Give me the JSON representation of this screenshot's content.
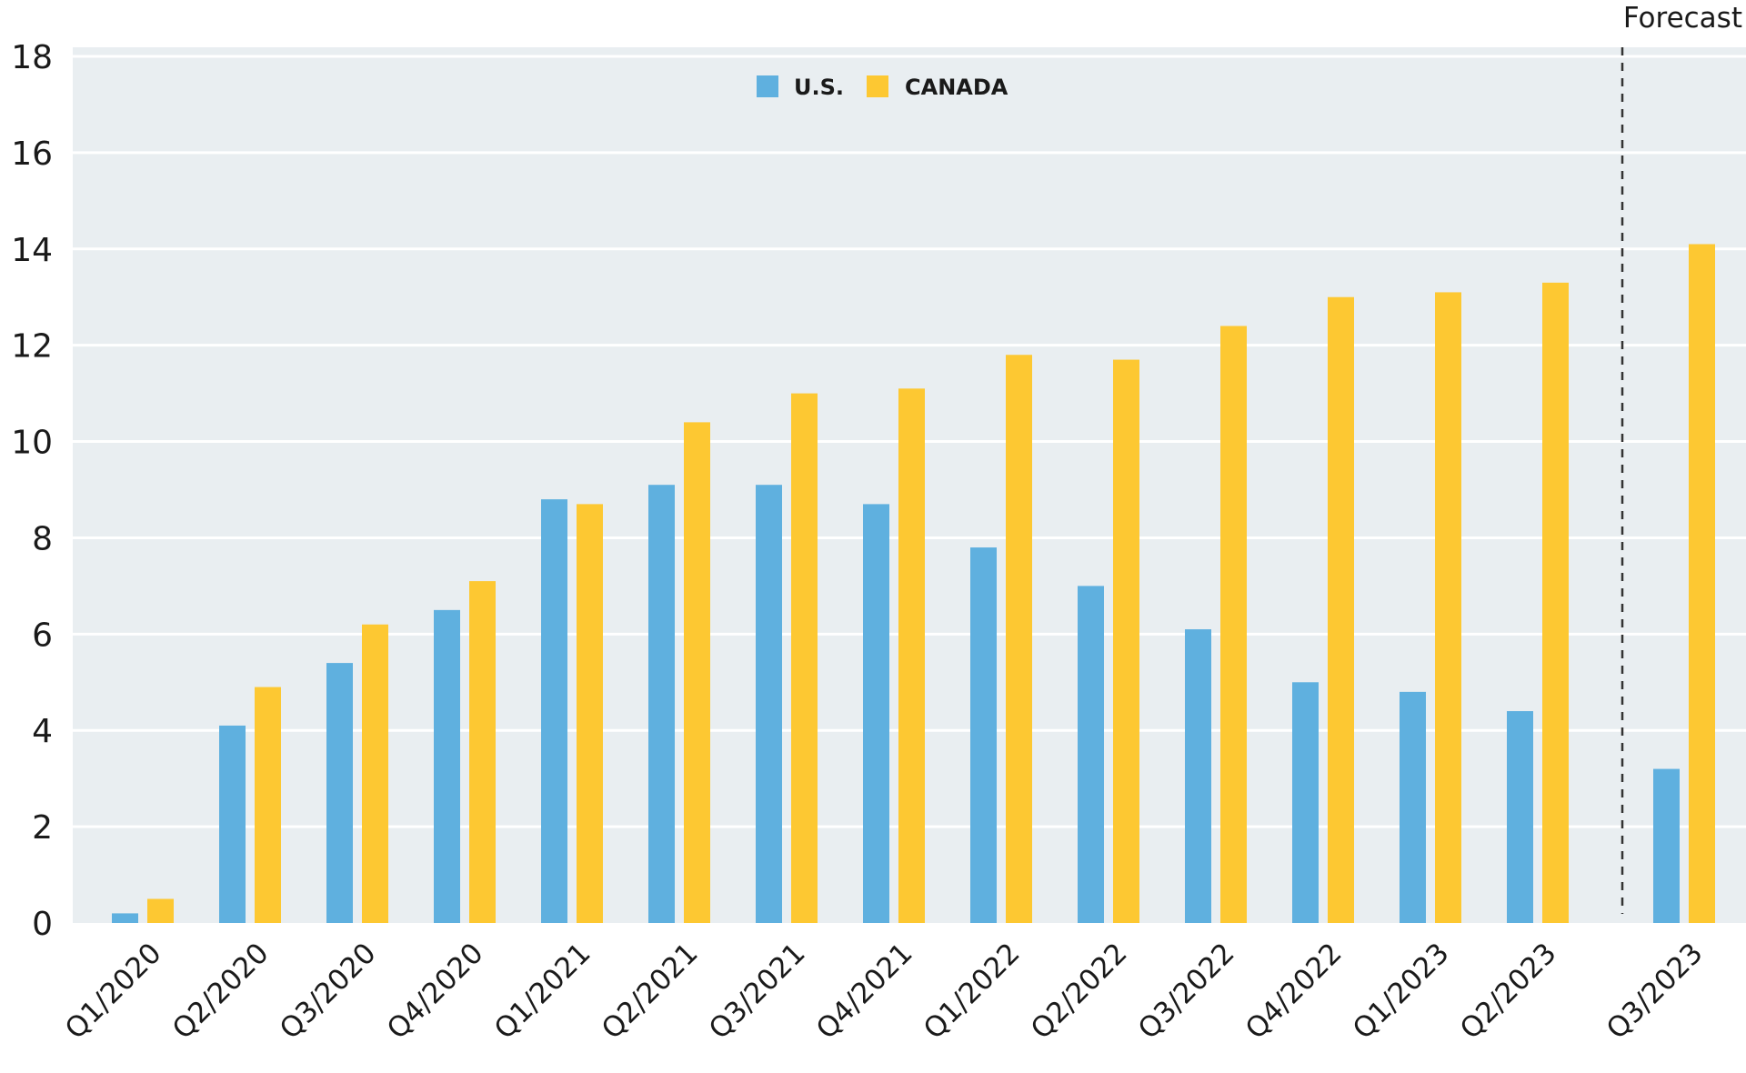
{
  "chart_data": {
    "type": "bar",
    "categories": [
      "Q1/2020",
      "Q2/2020",
      "Q3/2020",
      "Q4/2020",
      "Q1/2021",
      "Q2/2021",
      "Q3/2021",
      "Q4/2021",
      "Q1/2022",
      "Q2/2022",
      "Q3/2022",
      "Q4/2022",
      "Q1/2023",
      "Q2/2023",
      "Q3/2023"
    ],
    "series": [
      {
        "name": "U.S.",
        "color": "#5fb0df",
        "values": [
          0.2,
          4.1,
          5.4,
          6.5,
          8.8,
          9.1,
          9.1,
          8.7,
          7.8,
          7.0,
          6.1,
          5.0,
          4.8,
          4.4,
          3.2
        ]
      },
      {
        "name": "CANADA",
        "color": "#fdc832",
        "values": [
          0.5,
          4.9,
          6.2,
          7.1,
          8.7,
          10.4,
          11.0,
          11.1,
          11.8,
          11.7,
          12.4,
          13.0,
          13.1,
          13.3,
          14.1
        ]
      }
    ],
    "ylim": [
      0,
      18
    ],
    "yticks": [
      0,
      2,
      4,
      6,
      8,
      10,
      12,
      14,
      16,
      18
    ],
    "grid": true,
    "legend": "top-center",
    "forecast_label": "Forecast",
    "forecast_start_category": "Q3/2023",
    "background_color": "#e9eef1",
    "grid_color": "#ffffff"
  }
}
